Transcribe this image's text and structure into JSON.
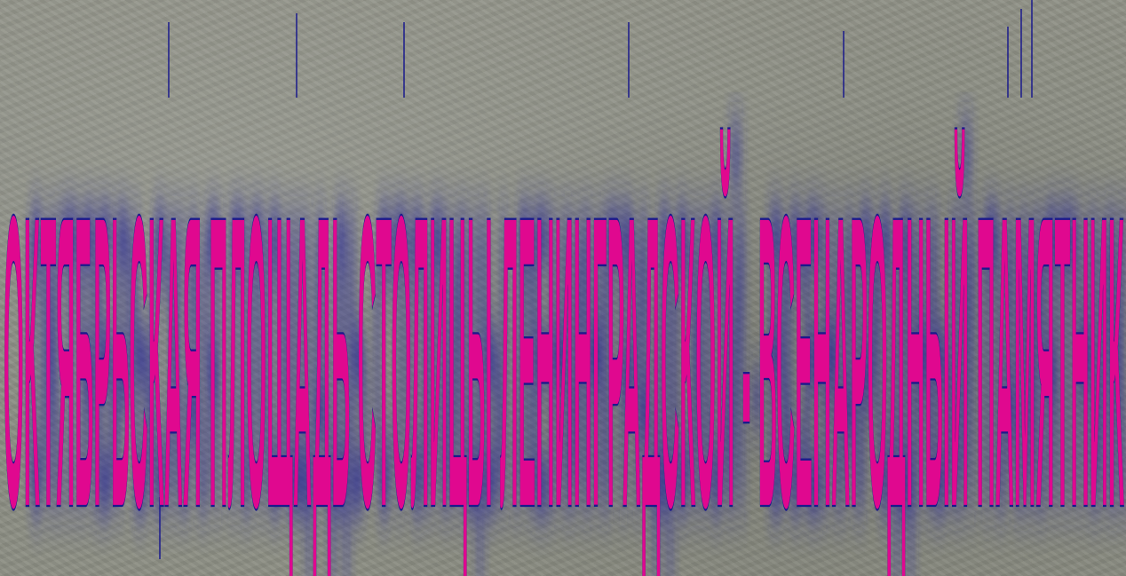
{
  "slide": {
    "title": "ОКТЯБРЬСКАЯ ПЛОЩАДЬ СТОЛИЦЫ ЛЕНИНГРАДСКОЙ - ВСЕНАРОДНЫЙ ПАМЯТНИК"
  },
  "colors": {
    "background": "#8b8d82",
    "text_fill": "#e0088f",
    "text_outline": "#1a1a8c",
    "shadow": "#2a2a9a"
  }
}
